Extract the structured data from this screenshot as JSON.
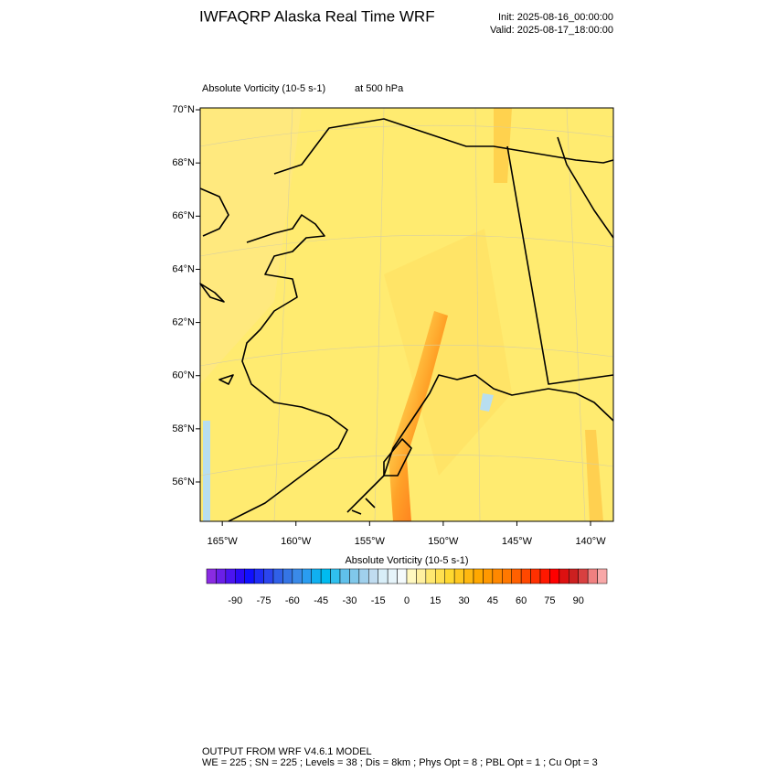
{
  "header": {
    "title": "IWFAQRP Alaska Real Time WRF",
    "init": "Init: 2025-08-16_00:00:00",
    "valid": "Valid: 2025-08-17_18:00:00"
  },
  "map": {
    "field": "Absolute Vorticity   (10-5 s-1)",
    "level": "at   500 hPa",
    "xlim": [
      -166.5,
      -138.45
    ],
    "ylim": [
      54.52,
      70.07
    ],
    "xticks": [
      {
        "value": -165,
        "label": "165°W"
      },
      {
        "value": -160,
        "label": "160°W"
      },
      {
        "value": -155,
        "label": "155°W"
      },
      {
        "value": -150,
        "label": "150°W"
      },
      {
        "value": -145,
        "label": "145°W"
      },
      {
        "value": -140,
        "label": "140°W"
      }
    ],
    "yticks": [
      {
        "value": 70,
        "label": "70°N"
      },
      {
        "value": 68,
        "label": "68°N"
      },
      {
        "value": 66,
        "label": "66°N"
      },
      {
        "value": 64,
        "label": "64°N"
      },
      {
        "value": 62,
        "label": "62°N"
      },
      {
        "value": 60,
        "label": "60°N"
      },
      {
        "value": 58,
        "label": "58°N"
      },
      {
        "value": 56,
        "label": "56°N"
      }
    ]
  },
  "colorbar": {
    "title": "Absolute Vorticity  (10-5 s-1)",
    "range": [
      -105,
      105
    ],
    "ticks": [
      -90,
      -75,
      -60,
      -45,
      -30,
      -15,
      0,
      15,
      30,
      45,
      60,
      75,
      90
    ],
    "colors": [
      "#8a2be2",
      "#6a1fe8",
      "#4b14f0",
      "#2b0af5",
      "#1010ff",
      "#1e2cf5",
      "#2b45ee",
      "#3060e8",
      "#3575e5",
      "#3a8ae8",
      "#2a9df0",
      "#10b0f0",
      "#00bbf0",
      "#30c0ee",
      "#60c0ea",
      "#80c8ea",
      "#a0d0ec",
      "#c0dcf0",
      "#d8eef8",
      "#e6f4fa",
      "#f4fafc",
      "#fff8c0",
      "#fff0a0",
      "#ffe870",
      "#ffe050",
      "#ffd830",
      "#ffc820",
      "#ffb810",
      "#ffa800",
      "#ff9800",
      "#ff8800",
      "#ff7800",
      "#ff6000",
      "#ff4800",
      "#ff3000",
      "#ff1800",
      "#ff0000",
      "#dd1010",
      "#cc2020",
      "#d84040",
      "#f08080",
      "#f8a8a8"
    ]
  },
  "footer": {
    "line1": "OUTPUT FROM WRF V4.6.1 MODEL",
    "line2": "WE = 225 ; SN = 225 ; Levels = 38 ; Dis = 8km ; Phys Opt = 8 ; PBL Opt = 1 ; Cu Opt = 3"
  }
}
